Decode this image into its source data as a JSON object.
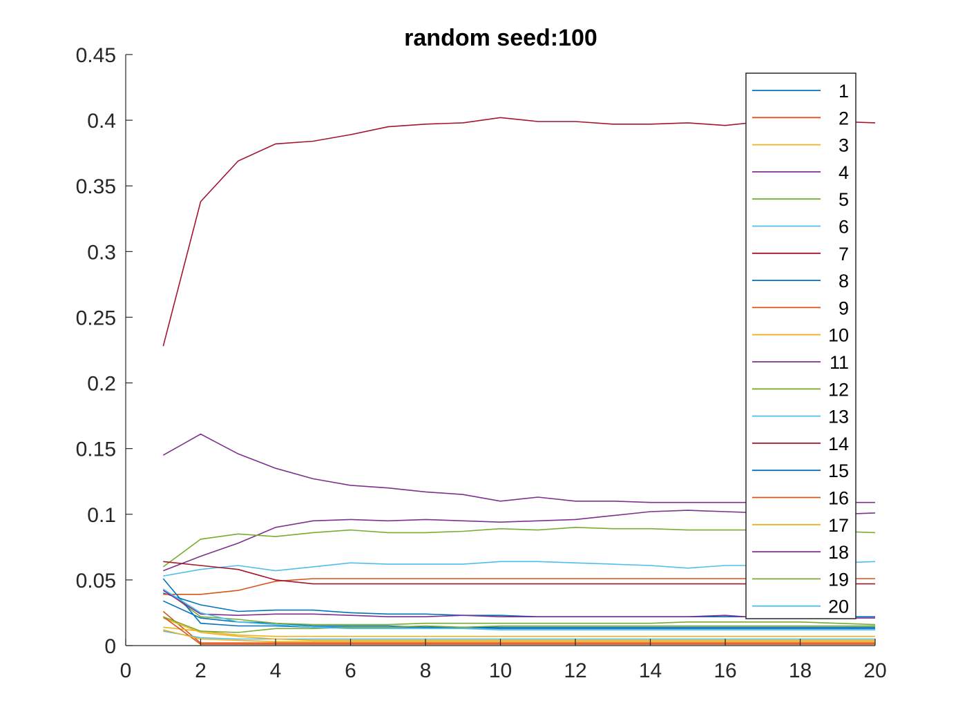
{
  "chart_data": {
    "type": "line",
    "title": "random seed:100",
    "xlabel": "",
    "ylabel": "",
    "xlim": [
      0,
      20
    ],
    "ylim": [
      0,
      0.45
    ],
    "xticks": [
      0,
      2,
      4,
      6,
      8,
      10,
      12,
      14,
      16,
      18,
      20
    ],
    "xtick_labels": [
      "0",
      "2",
      "4",
      "6",
      "8",
      "10",
      "12",
      "14",
      "16",
      "18",
      "20"
    ],
    "yticks": [
      0,
      0.05,
      0.1,
      0.15,
      0.2,
      0.25,
      0.3,
      0.35,
      0.4,
      0.45
    ],
    "ytick_labels": [
      "0",
      "0.05",
      "0.1",
      "0.15",
      "0.2",
      "0.25",
      "0.3",
      "0.35",
      "0.4",
      "0.45"
    ],
    "grid": false,
    "legend_position": "top-right",
    "x": [
      1,
      2,
      3,
      4,
      5,
      6,
      7,
      8,
      9,
      10,
      11,
      12,
      13,
      14,
      15,
      16,
      17,
      18,
      19,
      20
    ],
    "series": [
      {
        "name": "1",
        "color": "#0072BD",
        "values": [
          0.034,
          0.021,
          0.018,
          0.017,
          0.015,
          0.015,
          0.015,
          0.014,
          0.014,
          0.014,
          0.014,
          0.014,
          0.014,
          0.014,
          0.014,
          0.014,
          0.014,
          0.014,
          0.014,
          0.014
        ]
      },
      {
        "name": "2",
        "color": "#D95319",
        "values": [
          0.026,
          0.002,
          0.002,
          0.002,
          0.002,
          0.002,
          0.002,
          0.002,
          0.002,
          0.002,
          0.002,
          0.002,
          0.002,
          0.002,
          0.002,
          0.002,
          0.002,
          0.002,
          0.002,
          0.002
        ]
      },
      {
        "name": "3",
        "color": "#EDB120",
        "values": [
          0.014,
          0.011,
          0.008,
          0.007,
          0.007,
          0.007,
          0.007,
          0.007,
          0.007,
          0.007,
          0.007,
          0.007,
          0.007,
          0.007,
          0.007,
          0.007,
          0.007,
          0.007,
          0.007,
          0.007
        ]
      },
      {
        "name": "4",
        "color": "#7E2F8E",
        "values": [
          0.057,
          0.068,
          0.078,
          0.09,
          0.095,
          0.096,
          0.095,
          0.096,
          0.095,
          0.094,
          0.095,
          0.096,
          0.099,
          0.102,
          0.103,
          0.102,
          0.101,
          0.1,
          0.1,
          0.101
        ]
      },
      {
        "name": "5",
        "color": "#77AC30",
        "values": [
          0.043,
          0.022,
          0.02,
          0.017,
          0.016,
          0.016,
          0.016,
          0.017,
          0.017,
          0.017,
          0.017,
          0.017,
          0.017,
          0.017,
          0.018,
          0.018,
          0.018,
          0.018,
          0.017,
          0.016
        ]
      },
      {
        "name": "6",
        "color": "#4DBEEE",
        "values": [
          0.011,
          0.006,
          0.005,
          0.005,
          0.005,
          0.005,
          0.005,
          0.005,
          0.005,
          0.005,
          0.005,
          0.005,
          0.005,
          0.005,
          0.005,
          0.005,
          0.005,
          0.005,
          0.005,
          0.005
        ]
      },
      {
        "name": "7",
        "color": "#A2142F",
        "values": [
          0.228,
          0.338,
          0.369,
          0.382,
          0.384,
          0.389,
          0.395,
          0.397,
          0.398,
          0.402,
          0.399,
          0.399,
          0.397,
          0.397,
          0.398,
          0.396,
          0.399,
          0.399,
          0.399,
          0.398
        ]
      },
      {
        "name": "8",
        "color": "#0072BD",
        "values": [
          0.04,
          0.031,
          0.026,
          0.027,
          0.027,
          0.025,
          0.024,
          0.024,
          0.023,
          0.023,
          0.022,
          0.022,
          0.022,
          0.022,
          0.022,
          0.022,
          0.022,
          0.022,
          0.022,
          0.022
        ]
      },
      {
        "name": "9",
        "color": "#D95319",
        "values": [
          0.039,
          0.039,
          0.042,
          0.049,
          0.051,
          0.051,
          0.051,
          0.051,
          0.051,
          0.051,
          0.051,
          0.051,
          0.051,
          0.051,
          0.051,
          0.051,
          0.051,
          0.051,
          0.051,
          0.051
        ]
      },
      {
        "name": "10",
        "color": "#EDB120",
        "values": [
          0.021,
          0.01,
          0.007,
          0.005,
          0.004,
          0.004,
          0.004,
          0.004,
          0.004,
          0.004,
          0.004,
          0.004,
          0.004,
          0.004,
          0.004,
          0.004,
          0.004,
          0.004,
          0.004,
          0.004
        ]
      },
      {
        "name": "11",
        "color": "#7E2F8E",
        "values": [
          0.145,
          0.161,
          0.146,
          0.135,
          0.127,
          0.122,
          0.12,
          0.117,
          0.115,
          0.11,
          0.113,
          0.11,
          0.11,
          0.109,
          0.109,
          0.109,
          0.109,
          0.109,
          0.109,
          0.109
        ]
      },
      {
        "name": "12",
        "color": "#77AC30",
        "values": [
          0.06,
          0.081,
          0.085,
          0.083,
          0.086,
          0.088,
          0.086,
          0.086,
          0.087,
          0.089,
          0.088,
          0.09,
          0.089,
          0.089,
          0.088,
          0.088,
          0.088,
          0.088,
          0.087,
          0.086
        ]
      },
      {
        "name": "13",
        "color": "#4DBEEE",
        "values": [
          0.053,
          0.058,
          0.061,
          0.057,
          0.06,
          0.063,
          0.062,
          0.062,
          0.062,
          0.064,
          0.064,
          0.063,
          0.062,
          0.061,
          0.059,
          0.061,
          0.061,
          0.062,
          0.063,
          0.064
        ]
      },
      {
        "name": "14",
        "color": "#A2142F",
        "values": [
          0.064,
          0.061,
          0.058,
          0.05,
          0.047,
          0.047,
          0.047,
          0.047,
          0.047,
          0.047,
          0.047,
          0.047,
          0.047,
          0.047,
          0.047,
          0.047,
          0.047,
          0.047,
          0.047,
          0.047
        ]
      },
      {
        "name": "15",
        "color": "#0072BD",
        "values": [
          0.051,
          0.017,
          0.015,
          0.015,
          0.014,
          0.014,
          0.014,
          0.014,
          0.014,
          0.013,
          0.013,
          0.013,
          0.013,
          0.013,
          0.013,
          0.013,
          0.013,
          0.013,
          0.013,
          0.013
        ]
      },
      {
        "name": "16",
        "color": "#D95319",
        "values": [
          0.022,
          0.001,
          0.001,
          0.001,
          0.001,
          0.001,
          0.001,
          0.001,
          0.001,
          0.001,
          0.001,
          0.001,
          0.001,
          0.001,
          0.001,
          0.001,
          0.001,
          0.001,
          0.001,
          0.001
        ]
      },
      {
        "name": "17",
        "color": "#EDB120",
        "values": [
          0.012,
          0.005,
          0.004,
          0.003,
          0.003,
          0.003,
          0.003,
          0.003,
          0.003,
          0.003,
          0.003,
          0.003,
          0.003,
          0.003,
          0.003,
          0.003,
          0.003,
          0.003,
          0.003,
          0.003
        ]
      },
      {
        "name": "18",
        "color": "#7E2F8E",
        "values": [
          0.042,
          0.024,
          0.023,
          0.024,
          0.024,
          0.023,
          0.022,
          0.022,
          0.023,
          0.022,
          0.022,
          0.022,
          0.022,
          0.022,
          0.022,
          0.023,
          0.021,
          0.021,
          0.021,
          0.021
        ]
      },
      {
        "name": "19",
        "color": "#77AC30",
        "values": [
          0.022,
          0.011,
          0.01,
          0.013,
          0.013,
          0.014,
          0.014,
          0.015,
          0.014,
          0.015,
          0.015,
          0.015,
          0.015,
          0.015,
          0.015,
          0.015,
          0.015,
          0.015,
          0.015,
          0.015
        ]
      },
      {
        "name": "20",
        "color": "#4DBEEE",
        "values": [
          0.043,
          0.025,
          0.018,
          0.016,
          0.014,
          0.013,
          0.013,
          0.013,
          0.013,
          0.012,
          0.012,
          0.012,
          0.012,
          0.012,
          0.012,
          0.012,
          0.012,
          0.012,
          0.012,
          0.012
        ]
      }
    ]
  }
}
